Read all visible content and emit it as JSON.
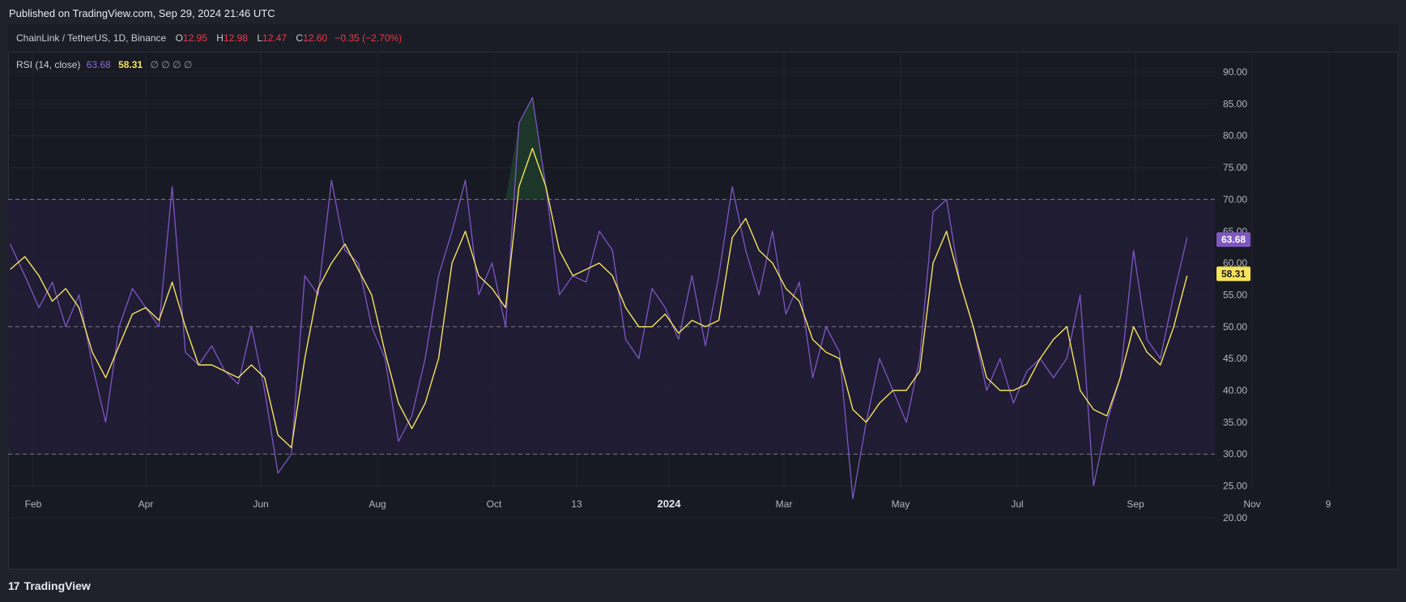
{
  "publish": {
    "text": "Published on TradingView.com, Sep 29, 2024 21:46 UTC"
  },
  "header": {
    "symbol": "ChainLink / TetherUS, 1D, Binance",
    "open_label": "O",
    "open": "12.95",
    "high_label": "H",
    "high": "12.98",
    "low_label": "L",
    "low": "12.47",
    "close_label": "C",
    "close": "12.60",
    "change": "−0.35 (−2.70%)"
  },
  "indicator": {
    "name": "RSI (14, close)",
    "rsi_value": "63.68",
    "ma_value": "58.31",
    "empty_values": "∅ ∅ ∅ ∅"
  },
  "footer": {
    "logo": "17",
    "brand": "TradingView"
  },
  "colors": {
    "background": "#171a22",
    "rsi_line": "#7e57c2",
    "ma_line": "#f7e35a",
    "band_fill": "#211d37",
    "overbought_fill": "#1d3a2a",
    "down_color": "#f23645"
  },
  "chart_data": {
    "type": "line",
    "y_axis": {
      "ylim": [
        18,
        93
      ],
      "ticks": [
        "90.00",
        "85.00",
        "80.00",
        "75.00",
        "70.00",
        "65.00",
        "60.00",
        "55.00",
        "50.00",
        "45.00",
        "40.00",
        "35.00",
        "30.00",
        "25.00",
        "20.00"
      ]
    },
    "x_axis": {
      "labels": [
        "Feb",
        "Apr",
        "Jun",
        "Aug",
        "Oct",
        "13",
        "2024",
        "Mar",
        "May",
        "Jul",
        "Sep",
        "Nov",
        "9"
      ],
      "bold_labels": [
        "2024"
      ]
    },
    "levels": {
      "upper": 70,
      "middle": 50,
      "lower": 30
    },
    "last_values": {
      "rsi": "63.68",
      "ma": "58.31"
    },
    "series": [
      {
        "name": "RSI (14, close)",
        "x": [
          "2023-01-21",
          "2023-01-28",
          "2023-02-04",
          "2023-02-11",
          "2023-02-18",
          "2023-02-25",
          "2023-03-04",
          "2023-03-11",
          "2023-03-18",
          "2023-03-25",
          "2023-04-01",
          "2023-04-08",
          "2023-04-15",
          "2023-04-22",
          "2023-04-29",
          "2023-05-06",
          "2023-05-13",
          "2023-05-20",
          "2023-05-27",
          "2023-06-03",
          "2023-06-10",
          "2023-06-17",
          "2023-06-24",
          "2023-07-01",
          "2023-07-08",
          "2023-07-15",
          "2023-07-22",
          "2023-07-29",
          "2023-08-05",
          "2023-08-12",
          "2023-08-19",
          "2023-08-26",
          "2023-09-02",
          "2023-09-09",
          "2023-09-16",
          "2023-09-23",
          "2023-09-30",
          "2023-10-07",
          "2023-10-14",
          "2023-10-21",
          "2023-10-28",
          "2023-11-04",
          "2023-11-11",
          "2023-11-18",
          "2023-11-25",
          "2023-12-02",
          "2023-12-09",
          "2023-12-16",
          "2023-12-23",
          "2023-12-30",
          "2024-01-06",
          "2024-01-13",
          "2024-01-20",
          "2024-01-27",
          "2024-02-03",
          "2024-02-10",
          "2024-02-17",
          "2024-02-24",
          "2024-03-02",
          "2024-03-09",
          "2024-03-16",
          "2024-03-23",
          "2024-03-30",
          "2024-04-06",
          "2024-04-13",
          "2024-04-20",
          "2024-04-27",
          "2024-05-04",
          "2024-05-11",
          "2024-05-18",
          "2024-05-25",
          "2024-06-01",
          "2024-06-08",
          "2024-06-15",
          "2024-06-22",
          "2024-06-29",
          "2024-07-06",
          "2024-07-13",
          "2024-07-20",
          "2024-07-27",
          "2024-08-03",
          "2024-08-10",
          "2024-08-17",
          "2024-08-24",
          "2024-08-31",
          "2024-09-07",
          "2024-09-14",
          "2024-09-21",
          "2024-09-28"
        ],
        "values": [
          63,
          58,
          53,
          57,
          50,
          55,
          44,
          35,
          50,
          56,
          53,
          50,
          72,
          46,
          44,
          47,
          43,
          41,
          50,
          40,
          27,
          30,
          58,
          55,
          73,
          62,
          60,
          50,
          45,
          32,
          36,
          45,
          58,
          65,
          73,
          55,
          60,
          50,
          82,
          86,
          72,
          55,
          58,
          57,
          65,
          62,
          48,
          45,
          56,
          53,
          48,
          58,
          47,
          58,
          72,
          62,
          55,
          65,
          52,
          57,
          42,
          50,
          46,
          23,
          35,
          45,
          40,
          35,
          45,
          68,
          70,
          57,
          50,
          40,
          45,
          38,
          43,
          45,
          42,
          45,
          55,
          25,
          35,
          42,
          62,
          48,
          45,
          55,
          64
        ],
        "color": "#7e57c2"
      },
      {
        "name": "MA",
        "x": [
          "2023-01-21",
          "2023-01-28",
          "2023-02-04",
          "2023-02-11",
          "2023-02-18",
          "2023-02-25",
          "2023-03-04",
          "2023-03-11",
          "2023-03-18",
          "2023-03-25",
          "2023-04-01",
          "2023-04-08",
          "2023-04-15",
          "2023-04-22",
          "2023-04-29",
          "2023-05-06",
          "2023-05-13",
          "2023-05-20",
          "2023-05-27",
          "2023-06-03",
          "2023-06-10",
          "2023-06-17",
          "2023-06-24",
          "2023-07-01",
          "2023-07-08",
          "2023-07-15",
          "2023-07-22",
          "2023-07-29",
          "2023-08-05",
          "2023-08-12",
          "2023-08-19",
          "2023-08-26",
          "2023-09-02",
          "2023-09-09",
          "2023-09-16",
          "2023-09-23",
          "2023-09-30",
          "2023-10-07",
          "2023-10-14",
          "2023-10-21",
          "2023-10-28",
          "2023-11-04",
          "2023-11-11",
          "2023-11-18",
          "2023-11-25",
          "2023-12-02",
          "2023-12-09",
          "2023-12-16",
          "2023-12-23",
          "2023-12-30",
          "2024-01-06",
          "2024-01-13",
          "2024-01-20",
          "2024-01-27",
          "2024-02-03",
          "2024-02-10",
          "2024-02-17",
          "2024-02-24",
          "2024-03-02",
          "2024-03-09",
          "2024-03-16",
          "2024-03-23",
          "2024-03-30",
          "2024-04-06",
          "2024-04-13",
          "2024-04-20",
          "2024-04-27",
          "2024-05-04",
          "2024-05-11",
          "2024-05-18",
          "2024-05-25",
          "2024-06-01",
          "2024-06-08",
          "2024-06-15",
          "2024-06-22",
          "2024-06-29",
          "2024-07-06",
          "2024-07-13",
          "2024-07-20",
          "2024-07-27",
          "2024-08-03",
          "2024-08-10",
          "2024-08-17",
          "2024-08-24",
          "2024-08-31",
          "2024-09-07",
          "2024-09-14",
          "2024-09-21",
          "2024-09-28"
        ],
        "values": [
          59,
          61,
          58,
          54,
          56,
          53,
          46,
          42,
          47,
          52,
          53,
          51,
          57,
          50,
          44,
          44,
          43,
          42,
          44,
          42,
          33,
          31,
          45,
          56,
          60,
          63,
          59,
          55,
          46,
          38,
          34,
          38,
          45,
          60,
          65,
          58,
          56,
          53,
          72,
          78,
          72,
          62,
          58,
          59,
          60,
          58,
          53,
          50,
          50,
          52,
          49,
          51,
          50,
          51,
          64,
          67,
          62,
          60,
          56,
          54,
          48,
          46,
          45,
          37,
          35,
          38,
          40,
          40,
          43,
          60,
          65,
          57,
          50,
          42,
          40,
          40,
          41,
          45,
          48,
          50,
          40,
          37,
          36,
          42,
          50,
          46,
          44,
          50,
          58
        ],
        "color": "#f7e35a"
      }
    ]
  }
}
